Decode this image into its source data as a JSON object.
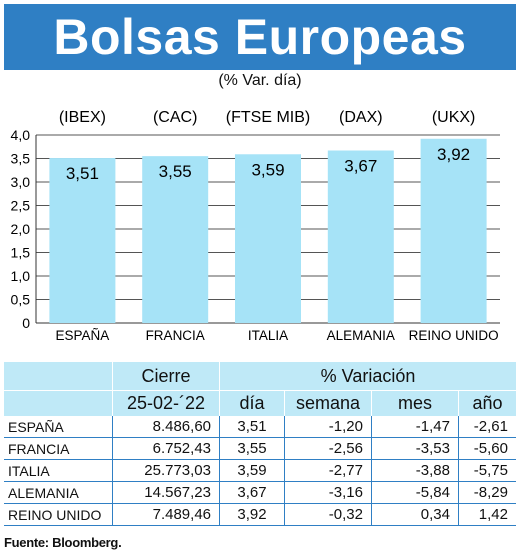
{
  "title": "Bolsas Europeas",
  "subtitle": "(% Var. día)",
  "chart_data": {
    "type": "bar",
    "categories": [
      "ESPAÑA",
      "FRANCIA",
      "ITALIA",
      "ALEMANIA",
      "REINO UNIDO"
    ],
    "index_labels": [
      "(IBEX)",
      "(CAC)",
      "(FTSE MIB)",
      "(DAX)",
      "(UKX)"
    ],
    "values": [
      3.51,
      3.55,
      3.59,
      3.67,
      3.92
    ],
    "value_labels": [
      "3,51",
      "3,55",
      "3,59",
      "3,67",
      "3,92"
    ],
    "ylim": [
      0,
      4.0
    ],
    "yticks": [
      "0",
      "0,5",
      "1,0",
      "1,5",
      "2,0",
      "2,5",
      "3,0",
      "3,5",
      "4,0"
    ],
    "ytick_values": [
      0,
      0.5,
      1.0,
      1.5,
      2.0,
      2.5,
      3.0,
      3.5,
      4.0
    ],
    "grid": true,
    "bar_color": "#a6e3f7"
  },
  "table": {
    "header_cierre": "Cierre",
    "header_variacion": "% Variación",
    "date": "25-02-´22",
    "columns": [
      "día",
      "semana",
      "mes",
      "año"
    ],
    "rows": [
      {
        "name": "ESPAÑA",
        "cierre": "8.486,60",
        "dia": "3,51",
        "semana": "-1,20",
        "mes": "-1,47",
        "anio": "-2,61"
      },
      {
        "name": "FRANCIA",
        "cierre": "6.752,43",
        "dia": "3,55",
        "semana": "-2,56",
        "mes": "-3,53",
        "anio": "-5,60"
      },
      {
        "name": "ITALIA",
        "cierre": "25.773,03",
        "dia": "3,59",
        "semana": "-2,77",
        "mes": "-3,88",
        "anio": "-5,75"
      },
      {
        "name": "ALEMANIA",
        "cierre": "14.567,23",
        "dia": "3,67",
        "semana": "-3,16",
        "mes": "-5,84",
        "anio": "-8,29"
      },
      {
        "name": "REINO UNIDO",
        "cierre": "7.489,46",
        "dia": "3,92",
        "semana": "-0,32",
        "mes": "0,34",
        "anio": "1,42"
      }
    ]
  },
  "source": "Fuente: Bloomberg."
}
